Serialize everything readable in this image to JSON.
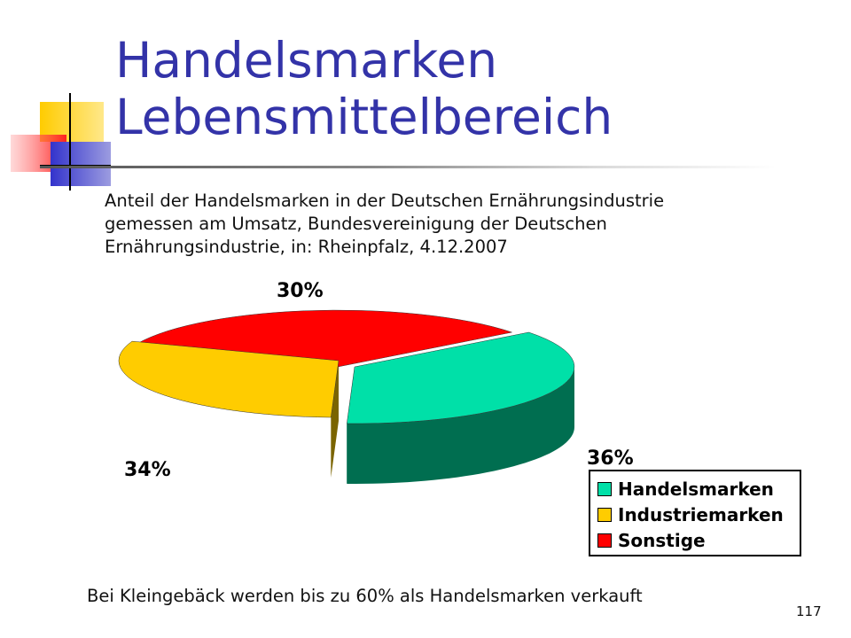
{
  "slide": {
    "title_line1": "Handelsmarken",
    "title_line2": "Lebensmittelbereich",
    "caption_line1": "Anteil der Handelsmarken in der Deutschen Ernährungsindustrie",
    "caption_line2": "gemessen am Umsatz, Bundesvereinigung der Deutschen",
    "caption_line3": "Ernährungsindustrie, in: Rheinpfalz, 4.12.2007",
    "footer": "Bei Kleingebäck werden bis zu 60% als Handelsmarken verkauft",
    "page_number": "117"
  },
  "chart_data": {
    "type": "pie",
    "style": "3d-exploded",
    "title": "",
    "slices": [
      {
        "name": "Handelsmarken",
        "value": 36,
        "label": "36%",
        "color": "#00e0a8",
        "side_color": "#006e50"
      },
      {
        "name": "Industriemarken",
        "value": 30,
        "label": "30%",
        "color": "#ffcc00",
        "side_color": "#7a6400"
      },
      {
        "name": "Sonstige",
        "value": 34,
        "label": "34%",
        "color": "#ff0000",
        "side_color": "#800000"
      }
    ],
    "legend": {
      "placement": "bottom-right",
      "items": [
        "Handelsmarken",
        "Industriemarken",
        "Sonstige"
      ]
    }
  },
  "colors": {
    "title": "#3333a8",
    "deco_yellow": "#ffcc00",
    "deco_blue": "#3333cc",
    "deco_red": "#ff3333"
  }
}
